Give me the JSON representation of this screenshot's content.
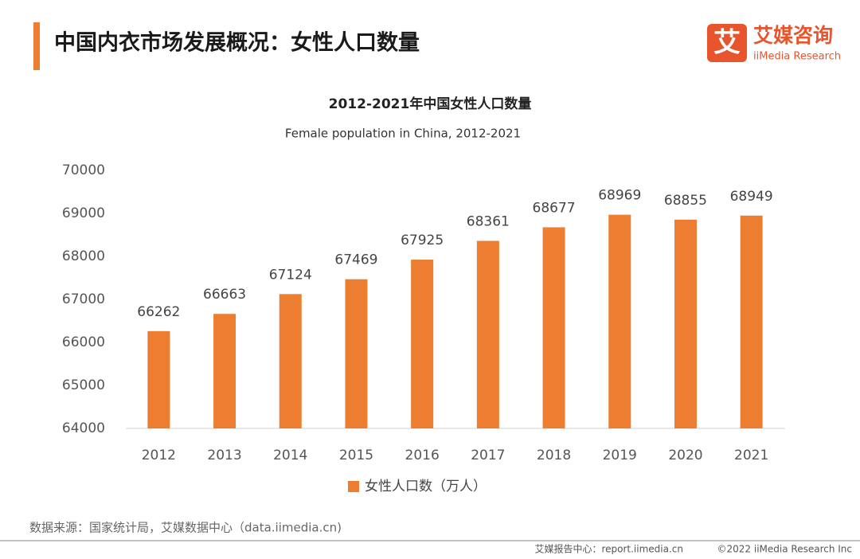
{
  "header": {
    "title": "中国内衣市场发展概况：女性人口数量"
  },
  "logo": {
    "icon": "艾",
    "name": "艾媒咨询",
    "english": "iiMedia Research"
  },
  "chart_data": {
    "type": "bar",
    "title": "2012-2021年中国女性人口数量",
    "subtitle": "Female population in China, 2012-2021",
    "categories": [
      "2012",
      "2013",
      "2014",
      "2015",
      "2016",
      "2017",
      "2018",
      "2019",
      "2020",
      "2021"
    ],
    "series": [
      {
        "name": "女性人口数（万人）",
        "color": "#ed7d31",
        "values": [
          66262,
          66663,
          67124,
          67469,
          67925,
          68361,
          68677,
          68969,
          68855,
          68949
        ]
      }
    ],
    "ylim": [
      64000,
      70000
    ],
    "yticks": [
      64000,
      65000,
      66000,
      67000,
      68000,
      69000,
      70000
    ],
    "grid": false
  },
  "source": "数据来源：国家统计局，艾媒数据中心（data.iimedia.cn)",
  "footer": {
    "center": "艾媒报告中心：report.iimedia.cn",
    "copyright": "©2022  iiMedia Research  Inc"
  }
}
